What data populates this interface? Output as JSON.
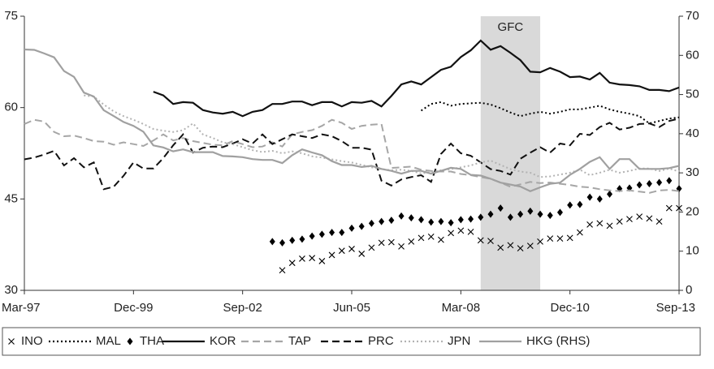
{
  "chart_data": {
    "type": "line",
    "categories": [
      "Mar-97",
      null,
      null,
      null,
      null,
      null,
      null,
      null,
      null,
      null,
      null,
      "Dec-99",
      null,
      null,
      null,
      null,
      null,
      null,
      null,
      null,
      null,
      null,
      "Sep-02",
      null,
      null,
      null,
      null,
      null,
      null,
      null,
      null,
      null,
      null,
      "Jun-05",
      null,
      null,
      null,
      null,
      null,
      null,
      null,
      null,
      null,
      null,
      "Mar-08",
      null,
      null,
      null,
      null,
      null,
      null,
      null,
      null,
      null,
      null,
      "Dec-10",
      null,
      null,
      null,
      null,
      null,
      null,
      null,
      null,
      null,
      null,
      "Sep-13"
    ],
    "ylim": [
      30,
      75
    ],
    "yticks": [
      30,
      45,
      60,
      75
    ],
    "y2lim": [
      0,
      70
    ],
    "y2ticks": [
      0,
      10,
      20,
      30,
      40,
      50,
      60,
      70
    ],
    "shaded_region": {
      "label": "GFC",
      "span": [
        46,
        52
      ],
      "color": "#d9d9d9"
    },
    "series": [
      {
        "name": "INO",
        "color": "#000000",
        "style": "cross",
        "values": [
          null,
          null,
          null,
          null,
          null,
          null,
          null,
          null,
          null,
          null,
          null,
          null,
          null,
          null,
          null,
          null,
          null,
          null,
          null,
          null,
          null,
          null,
          null,
          null,
          null,
          null,
          33.3,
          34.5,
          35.2,
          35.3,
          34.8,
          35.8,
          36.5,
          36.8,
          36.0,
          37.0,
          37.8,
          37.9,
          37.2,
          38.0,
          38.6,
          38.8,
          38.3,
          39.4,
          39.8,
          39.6,
          38.2,
          38.1,
          37.0,
          37.4,
          36.9,
          37.3,
          38.0,
          38.5,
          38.5,
          38.6,
          39.5,
          40.8,
          41.0,
          40.6,
          41.3,
          41.7,
          42.1,
          41.8,
          41.3,
          43.5,
          43.5
        ]
      },
      {
        "name": "MAL",
        "color": "#000000",
        "style": "dotted",
        "values": [
          null,
          null,
          null,
          null,
          null,
          null,
          null,
          null,
          null,
          null,
          null,
          null,
          null,
          null,
          null,
          null,
          null,
          null,
          null,
          null,
          null,
          null,
          null,
          null,
          null,
          null,
          null,
          null,
          null,
          null,
          null,
          null,
          null,
          null,
          null,
          null,
          null,
          null,
          null,
          null,
          59.5,
          60.6,
          60.9,
          60.3,
          60.6,
          60.7,
          60.8,
          60.5,
          59.9,
          59.2,
          58.6,
          59.0,
          59.3,
          59.0,
          59.3,
          59.7,
          59.7,
          60.0,
          60.3,
          59.7,
          59.3,
          59.0,
          58.6,
          57.4,
          57.8,
          58.2,
          58.4
        ]
      },
      {
        "name": "THA",
        "color": "#000000",
        "style": "diamond",
        "values": [
          null,
          null,
          null,
          null,
          null,
          null,
          null,
          null,
          null,
          null,
          null,
          null,
          null,
          null,
          null,
          null,
          null,
          null,
          null,
          null,
          null,
          null,
          null,
          null,
          null,
          38.0,
          37.8,
          38.2,
          38.4,
          38.9,
          39.2,
          39.5,
          39.5,
          40.2,
          40.5,
          41.0,
          41.3,
          41.5,
          42.2,
          41.9,
          41.6,
          41.2,
          41.3,
          41.1,
          41.6,
          41.7,
          42.0,
          42.5,
          43.5,
          42.0,
          42.5,
          43.0,
          42.5,
          42.3,
          42.8,
          44.0,
          44.1,
          45.3,
          45.0,
          45.8,
          46.7,
          46.8,
          47.3,
          47.5,
          47.7,
          48.0,
          46.7
        ]
      },
      {
        "name": "KOR",
        "color": "#111111",
        "style": "solid",
        "values": [
          null,
          null,
          null,
          null,
          null,
          null,
          null,
          null,
          null,
          null,
          null,
          null,
          null,
          62.6,
          62.0,
          60.6,
          60.9,
          60.8,
          59.6,
          59.2,
          59.0,
          59.3,
          58.6,
          59.3,
          59.6,
          60.6,
          60.6,
          61.0,
          61.0,
          60.4,
          60.9,
          60.9,
          60.2,
          60.9,
          60.8,
          61.1,
          60.2,
          61.9,
          63.8,
          64.3,
          63.8,
          65.0,
          66.2,
          66.7,
          68.3,
          69.4,
          71.0,
          69.5,
          70.1,
          69.0,
          67.8,
          65.9,
          65.8,
          66.5,
          65.9,
          65.0,
          65.1,
          64.6,
          65.7,
          64.1,
          63.8,
          63.7,
          63.5,
          62.9,
          62.9,
          62.7,
          63.3
        ]
      },
      {
        "name": "TAP",
        "color": "#a6a6a6",
        "style": "dashed",
        "values": [
          57.3,
          58.0,
          57.7,
          56.0,
          55.3,
          55.4,
          55.0,
          54.5,
          54.4,
          53.9,
          54.3,
          54.0,
          53.7,
          54.6,
          55.6,
          54.6,
          55.0,
          54.5,
          54.2,
          53.9,
          53.8,
          54.5,
          54.0,
          53.5,
          53.6,
          54.3,
          53.6,
          55.6,
          56.0,
          56.3,
          57.0,
          58.0,
          57.5,
          56.5,
          57.0,
          57.2,
          57.3,
          50.1,
          50.2,
          50.3,
          49.8,
          49.6,
          49.5,
          49.5,
          49.1,
          48.9,
          48.6,
          48.3,
          47.7,
          47.0,
          47.4,
          47.8,
          47.6,
          47.7,
          47.5,
          47.3,
          47.0,
          46.9,
          46.6,
          46.4,
          46.3,
          46.4,
          46.2,
          46.0,
          46.4,
          46.5,
          46.3
        ]
      },
      {
        "name": "PRC",
        "color": "#111111",
        "style": "dashed",
        "values": [
          51.5,
          51.8,
          52.3,
          52.9,
          50.5,
          51.7,
          50.2,
          51.0,
          46.6,
          47.0,
          48.8,
          51.0,
          50.0,
          50.0,
          51.7,
          53.8,
          55.6,
          52.6,
          53.4,
          53.6,
          53.5,
          54.1,
          54.8,
          54.1,
          55.6,
          54.0,
          54.8,
          55.6,
          55.3,
          55.0,
          55.6,
          55.3,
          54.5,
          53.4,
          53.4,
          53.1,
          48.0,
          47.2,
          48.2,
          48.6,
          48.9,
          47.8,
          52.4,
          54.1,
          52.5,
          52.1,
          51.0,
          49.9,
          49.6,
          49.0,
          51.6,
          52.6,
          53.5,
          52.6,
          54.1,
          53.8,
          55.7,
          55.5,
          56.8,
          57.5,
          56.4,
          56.7,
          57.3,
          57.4,
          56.8,
          57.8,
          58.2
        ]
      },
      {
        "name": "JPN",
        "color": "#b3b3b3",
        "style": "dotted",
        "values": [
          null,
          null,
          null,
          null,
          null,
          null,
          62.0,
          61.8,
          60.5,
          59.4,
          58.6,
          58.0,
          57.3,
          56.5,
          56.2,
          56.0,
          56.3,
          57.4,
          55.6,
          55.0,
          54.3,
          54.0,
          53.5,
          53.0,
          52.7,
          52.9,
          52.5,
          52.8,
          52.5,
          52.0,
          51.8,
          51.5,
          51.2,
          51.0,
          50.6,
          50.2,
          49.9,
          49.7,
          49.8,
          49.6,
          49.2,
          49.4,
          49.7,
          49.9,
          50.2,
          50.5,
          51.0,
          51.3,
          50.6,
          49.9,
          49.5,
          49.3,
          48.6,
          48.7,
          49.0,
          49.3,
          49.8,
          48.9,
          49.3,
          49.8,
          49.3,
          49.6,
          50.0,
          50.0,
          49.6,
          50.0,
          49.5
        ]
      },
      {
        "name": "HKG (RHS)",
        "color": "#a0a0a0",
        "style": "solid",
        "axis": "y2",
        "values": [
          61.5,
          61.4,
          60.5,
          59.5,
          56.0,
          54.5,
          50.5,
          49.5,
          46.0,
          44.5,
          43.0,
          42.0,
          40.5,
          37.0,
          36.5,
          35.5,
          36.0,
          35.3,
          35.3,
          35.3,
          34.3,
          34.2,
          34.0,
          33.5,
          33.3,
          33.3,
          32.5,
          34.5,
          36.0,
          35.2,
          34.5,
          33.0,
          32.0,
          32.0,
          31.5,
          31.8,
          31.0,
          30.5,
          29.8,
          30.5,
          30.5,
          29.8,
          30.5,
          31.3,
          31.0,
          29.5,
          29.3,
          28.5,
          27.5,
          27.0,
          26.5,
          25.3,
          26.3,
          27.2,
          27.5,
          29.5,
          31.0,
          32.8,
          34.0,
          31.0,
          33.5,
          33.5,
          31.0,
          31.0,
          31.0,
          31.2,
          31.8
        ]
      }
    ]
  }
}
